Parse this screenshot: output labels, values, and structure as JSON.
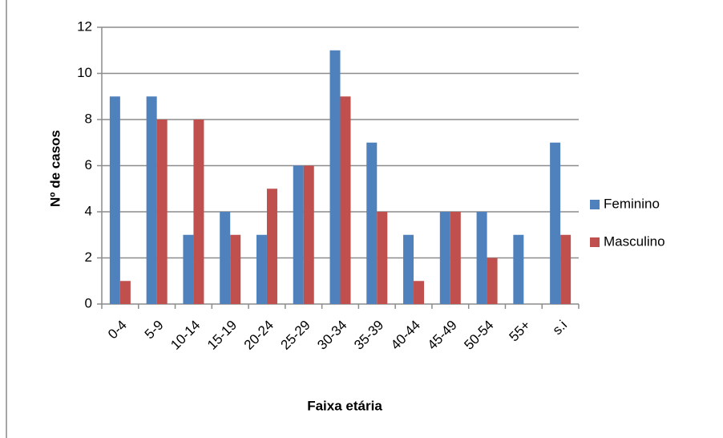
{
  "chart_data": {
    "type": "bar",
    "x_label": "Faixa etária",
    "y_label": "Nº de casos",
    "categories": [
      "0-4",
      "5-9",
      "10-14",
      "15-19",
      "20-24",
      "25-29",
      "30-34",
      "35-39",
      "40-44",
      "45-49",
      "50-54",
      "55+",
      "s.i"
    ],
    "series": [
      {
        "name": "Feminino",
        "color": "#4f81bd",
        "values": [
          9,
          9,
          3,
          4,
          3,
          6,
          11,
          7,
          3,
          4,
          4,
          3,
          7
        ]
      },
      {
        "name": "Masculino",
        "color": "#c0504d",
        "values": [
          1,
          8,
          8,
          3,
          5,
          6,
          9,
          4,
          1,
          4,
          2,
          0,
          3
        ]
      }
    ],
    "ylim": [
      0,
      12
    ],
    "yticks": [
      0,
      2,
      4,
      6,
      8,
      10,
      12
    ],
    "grid": true,
    "legend": "right"
  }
}
